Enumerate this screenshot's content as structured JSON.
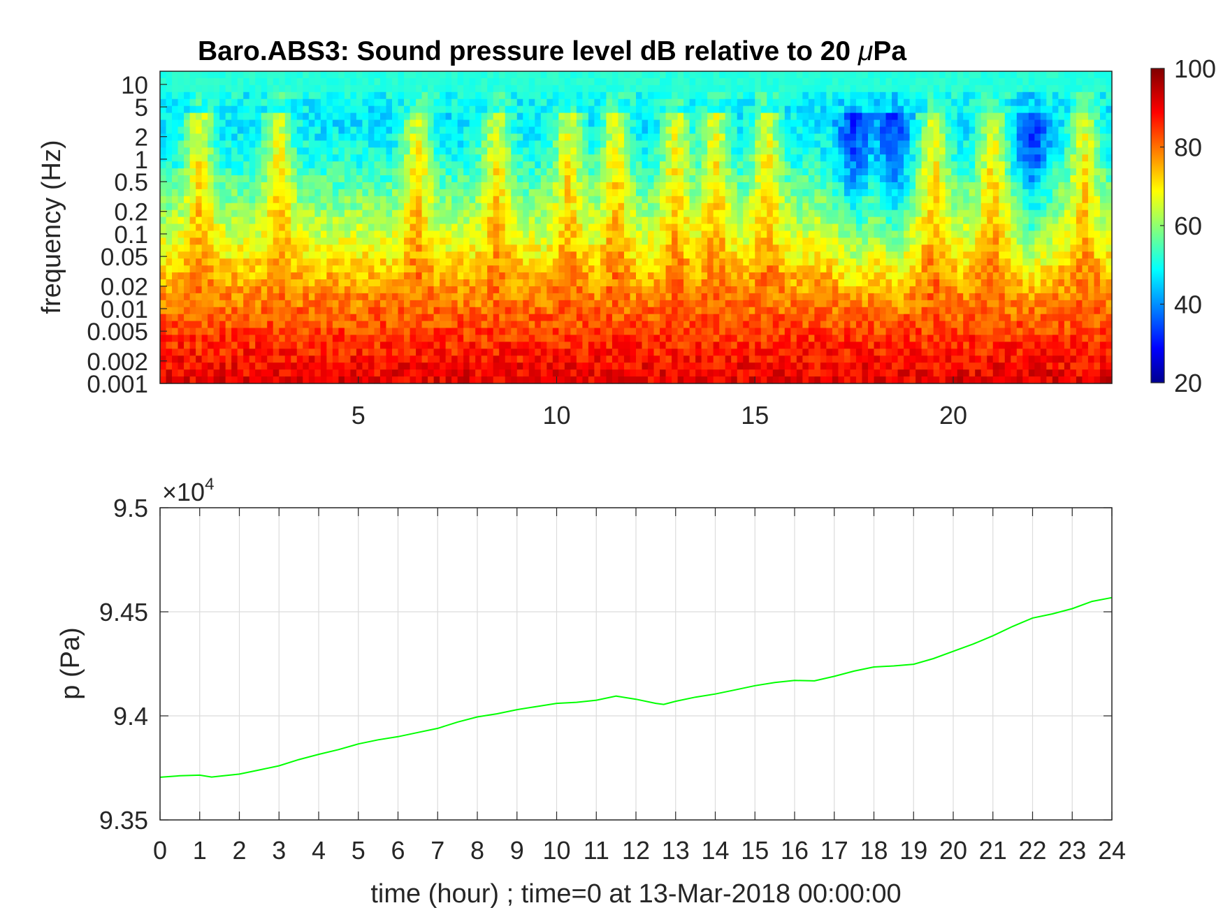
{
  "chart_data": [
    {
      "type": "heatmap",
      "title": "Baro.ABS3: Sound pressure level dB relative to 20 μPa",
      "title_parts": {
        "prefix": "Baro.ABS3: Sound pressure level dB relative to 20 ",
        "mu": "μ",
        "suffix": "Pa"
      },
      "ylabel": "frequency (Hz)",
      "xlabel": "",
      "y_scale": "log",
      "ylim": [
        0.001,
        15
      ],
      "xlim": [
        0,
        24
      ],
      "y_ticks": [
        0.001,
        0.002,
        0.005,
        0.01,
        0.02,
        0.05,
        0.1,
        0.2,
        0.5,
        1,
        2,
        5,
        10
      ],
      "y_tick_labels": [
        "0.001",
        "0.002",
        "0.005",
        "0.01",
        "0.02",
        "0.05",
        "0.1",
        "0.2",
        "0.5",
        "1",
        "2",
        "5",
        "10"
      ],
      "x_ticks": [
        5,
        10,
        15,
        20
      ],
      "x_tick_labels": [
        "5",
        "10",
        "15",
        "20"
      ],
      "colorbar": {
        "colormap": "jet",
        "clim": [
          20,
          100
        ],
        "ticks": [
          20,
          40,
          60,
          80,
          100
        ],
        "tick_labels": [
          "20",
          "40",
          "60",
          "80",
          "100"
        ]
      },
      "approx_levels_db": {
        "high_frequency_band_above_5Hz": 53,
        "band_2_to_5Hz": 48,
        "band_0.1_to_1Hz": 60,
        "band_0.005_to_0.05Hz": 82,
        "band_below_0.005Hz": 90
      },
      "high_activity_hours": [
        1,
        3,
        6.5,
        8.5,
        10.3,
        11.5,
        13,
        14,
        15.3,
        19.5,
        21,
        23.3
      ],
      "quiet_hours": [
        17.5,
        18.5,
        22
      ]
    },
    {
      "type": "line",
      "ylabel": "p (Pa)",
      "xlabel": "time (hour) ; time=0 at 13-Mar-2018 00:00:00",
      "y_multiplier": "×10",
      "y_multiplier_exponent": "4",
      "xlim": [
        0,
        24
      ],
      "ylim": [
        93500,
        95000
      ],
      "grid": true,
      "x_ticks": [
        0,
        1,
        2,
        3,
        4,
        5,
        6,
        7,
        8,
        9,
        10,
        11,
        12,
        13,
        14,
        15,
        16,
        17,
        18,
        19,
        20,
        21,
        22,
        23,
        24
      ],
      "x_tick_labels": [
        "0",
        "1",
        "2",
        "3",
        "4",
        "5",
        "6",
        "7",
        "8",
        "9",
        "10",
        "11",
        "12",
        "13",
        "14",
        "15",
        "16",
        "17",
        "18",
        "19",
        "20",
        "21",
        "22",
        "23",
        "24"
      ],
      "y_ticks": [
        93500,
        94000,
        94500,
        95000
      ],
      "y_tick_labels": [
        "9.35",
        "9.4",
        "9.45",
        "9.5"
      ],
      "series": [
        {
          "color": "#00ff00",
          "x": [
            0,
            0.5,
            1,
            1.3,
            1.5,
            2,
            2.5,
            3,
            3.5,
            4,
            4.5,
            5,
            5.5,
            6,
            6.5,
            7,
            7.5,
            8,
            8.5,
            9,
            9.5,
            10,
            10.5,
            11,
            11.5,
            12,
            12.5,
            12.7,
            13,
            13.5,
            14,
            14.5,
            15,
            15.5,
            16,
            16.5,
            17,
            17.5,
            18,
            18.5,
            19,
            19.5,
            20,
            20.5,
            21,
            21.5,
            22,
            22.5,
            23,
            23.5,
            24
          ],
          "y": [
            93705,
            93712,
            93715,
            93706,
            93710,
            93720,
            93740,
            93760,
            93790,
            93815,
            93838,
            93865,
            93885,
            93900,
            93920,
            93940,
            93970,
            93995,
            94010,
            94030,
            94045,
            94060,
            94065,
            94075,
            94095,
            94080,
            94060,
            94055,
            94070,
            94090,
            94105,
            94125,
            94145,
            94160,
            94170,
            94168,
            94190,
            94215,
            94235,
            94240,
            94248,
            94275,
            94310,
            94345,
            94385,
            94430,
            94470,
            94490,
            94515,
            94550,
            94568
          ]
        }
      ]
    }
  ]
}
